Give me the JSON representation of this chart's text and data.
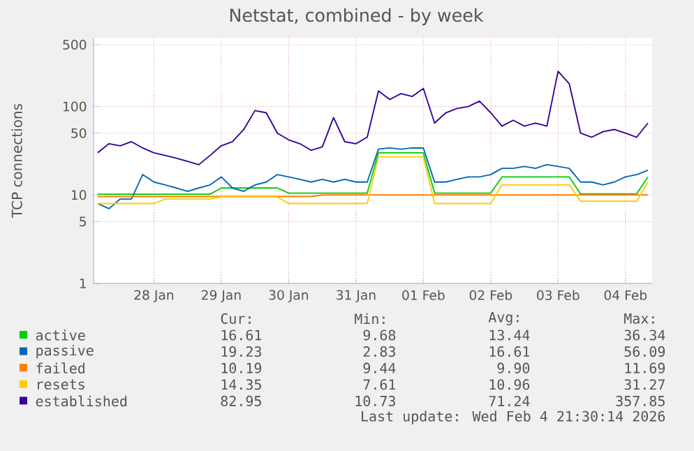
{
  "chart_data": {
    "type": "line",
    "title": "Netstat, combined - by week",
    "ylabel": "TCP connections",
    "log": true,
    "grid": true,
    "legend": "bottom",
    "xlim": [
      "2026-01-27T14:30",
      "2026-02-04T21:30"
    ],
    "xticks": [
      {
        "value": "2026-01-28T12:00",
        "label": "28 Jan"
      },
      {
        "value": "2026-01-29T12:00",
        "label": "29 Jan"
      },
      {
        "value": "2026-01-30T12:00",
        "label": "30 Jan"
      },
      {
        "value": "2026-01-31T12:00",
        "label": "31 Jan"
      },
      {
        "value": "2026-02-01T12:00",
        "label": "01 Feb"
      },
      {
        "value": "2026-02-02T12:00",
        "label": "02 Feb"
      },
      {
        "value": "2026-02-03T12:00",
        "label": "03 Feb"
      },
      {
        "value": "2026-02-04T12:00",
        "label": "04 Feb"
      }
    ],
    "ylim": [
      1,
      600
    ],
    "yticks": [
      1,
      5,
      10,
      50,
      100,
      500
    ],
    "x": [
      "2026-01-27T16:00",
      "2026-01-27T20:00",
      "2026-01-28T00:00",
      "2026-01-28T04:00",
      "2026-01-28T08:00",
      "2026-01-28T12:00",
      "2026-01-28T16:00",
      "2026-01-28T20:00",
      "2026-01-29T00:00",
      "2026-01-29T04:00",
      "2026-01-29T08:00",
      "2026-01-29T12:00",
      "2026-01-29T16:00",
      "2026-01-29T20:00",
      "2026-01-30T00:00",
      "2026-01-30T04:00",
      "2026-01-30T08:00",
      "2026-01-30T12:00",
      "2026-01-30T16:00",
      "2026-01-30T20:00",
      "2026-01-31T00:00",
      "2026-01-31T04:00",
      "2026-01-31T08:00",
      "2026-01-31T12:00",
      "2026-01-31T16:00",
      "2026-01-31T20:00",
      "2026-02-01T00:00",
      "2026-02-01T04:00",
      "2026-02-01T08:00",
      "2026-02-01T12:00",
      "2026-02-01T16:00",
      "2026-02-01T20:00",
      "2026-02-02T00:00",
      "2026-02-02T04:00",
      "2026-02-02T08:00",
      "2026-02-02T12:00",
      "2026-02-02T16:00",
      "2026-02-02T20:00",
      "2026-02-03T00:00",
      "2026-02-03T04:00",
      "2026-02-03T08:00",
      "2026-02-03T12:00",
      "2026-02-03T16:00",
      "2026-02-03T20:00",
      "2026-02-04T00:00",
      "2026-02-04T04:00",
      "2026-02-04T08:00",
      "2026-02-04T12:00",
      "2026-02-04T16:00",
      "2026-02-04T20:00"
    ],
    "series": [
      {
        "name": "active",
        "color": "#00cc00",
        "values": [
          10.2,
          10.2,
          10.2,
          10.2,
          10.2,
          10.2,
          10.2,
          10.2,
          10.2,
          10.2,
          10.2,
          12,
          12,
          12,
          12,
          12,
          12,
          10.5,
          10.5,
          10.5,
          10.5,
          10.5,
          10.5,
          10.5,
          10.5,
          30,
          30,
          30,
          30,
          30,
          10.5,
          10.5,
          10.5,
          10.5,
          10.5,
          10.5,
          16,
          16,
          16,
          16,
          16,
          16,
          16,
          10.3,
          10.3,
          10.3,
          10.3,
          10.3,
          10.3,
          16
        ]
      },
      {
        "name": "passive",
        "color": "#0066b3",
        "values": [
          8,
          7,
          9,
          9,
          17,
          14,
          13,
          12,
          11,
          12,
          13,
          16,
          12,
          11,
          13,
          14,
          17,
          16,
          15,
          14,
          15,
          14,
          15,
          14,
          14,
          33,
          34,
          33,
          34,
          34,
          14,
          14,
          15,
          16,
          16,
          17,
          20,
          20,
          21,
          20,
          22,
          21,
          20,
          14,
          14,
          13,
          14,
          16,
          17,
          19
        ]
      },
      {
        "name": "failed",
        "color": "#ff8000",
        "values": [
          9.6,
          9.6,
          9.6,
          9.6,
          9.6,
          9.6,
          9.6,
          9.6,
          9.6,
          9.6,
          9.6,
          9.6,
          9.6,
          9.6,
          9.6,
          9.6,
          9.6,
          9.6,
          9.6,
          9.6,
          10,
          10,
          10,
          10,
          10,
          10,
          10,
          10,
          10,
          10,
          10,
          10,
          10,
          10,
          10,
          10,
          10,
          10,
          10,
          10,
          10,
          10,
          10,
          10,
          10,
          10,
          10,
          10,
          10,
          10
        ]
      },
      {
        "name": "resets",
        "color": "#ffcc00",
        "values": [
          8,
          8,
          8,
          8,
          8,
          8,
          9,
          9,
          9,
          9,
          9,
          9.5,
          9.5,
          9.5,
          9.5,
          9.5,
          9.5,
          8,
          8,
          8,
          8,
          8,
          8,
          8,
          8,
          27,
          27,
          27,
          27,
          27,
          8,
          8,
          8,
          8,
          8,
          8,
          13,
          13,
          13,
          13,
          13,
          13,
          13,
          8.5,
          8.5,
          8.5,
          8.5,
          8.5,
          8.5,
          14
        ]
      },
      {
        "name": "established",
        "color": "#330099",
        "values": [
          30,
          38,
          36,
          40,
          34,
          30,
          28,
          26,
          24,
          22,
          28,
          36,
          40,
          55,
          90,
          85,
          50,
          42,
          38,
          32,
          35,
          75,
          40,
          38,
          45,
          150,
          120,
          140,
          130,
          160,
          65,
          85,
          95,
          100,
          115,
          85,
          60,
          70,
          60,
          65,
          60,
          250,
          180,
          50,
          45,
          52,
          55,
          50,
          45,
          65
        ]
      }
    ],
    "annotations": [
      "Cur:",
      "Min:",
      "Avg:",
      "Max:",
      "16.61",
      "9.68",
      "13.44",
      "36.34",
      "19.23",
      "2.83",
      "16.61",
      "56.09",
      "10.19",
      "9.44",
      "9.90",
      "11.69",
      "14.35",
      "7.61",
      "10.96",
      "31.27",
      "82.95",
      "10.73",
      "71.24",
      "357.85",
      "Last update: Wed Feb  4 21:30:14 2026"
    ]
  }
}
